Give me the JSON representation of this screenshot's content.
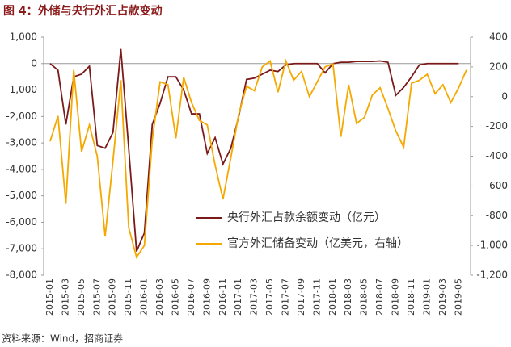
{
  "chart_data": {
    "type": "line",
    "title": "图 4：外储与央行外汇占款变动",
    "source": "资料来源：Wind，招商证券",
    "categories": [
      "2015-01",
      null,
      "2015-03",
      null,
      "2015-05",
      null,
      "2015-07",
      null,
      "2015-09",
      null,
      "2015-11",
      null,
      "2016-01",
      null,
      "2016-03",
      null,
      "2016-05",
      null,
      "2016-07",
      null,
      "2016-09",
      null,
      "2016-11",
      null,
      "2017-01",
      null,
      "2017-03",
      null,
      "2017-05",
      null,
      "2017-07",
      null,
      "2017-09",
      null,
      "2017-11",
      null,
      "2018-01",
      null,
      "2018-03",
      null,
      "2018-05",
      null,
      "2018-07",
      null,
      "2018-09",
      null,
      "2018-11",
      null,
      "2019-01",
      null,
      "2019-03",
      null,
      "2019-05",
      null
    ],
    "series": [
      {
        "name": "央行外汇占款余额变动（亿元）",
        "color": "#7b1a1a",
        "values": [
          0,
          -250,
          -2300,
          -500,
          -400,
          -100,
          -3100,
          -3200,
          -2600,
          550,
          -3200,
          -7100,
          -6400,
          -2300,
          -1500,
          -500,
          -500,
          -1000,
          -1900,
          -1900,
          -3400,
          -2800,
          -3800,
          -3200,
          -2000,
          -600,
          -550,
          -400,
          -250,
          -300,
          -50,
          0,
          0,
          0,
          0,
          -350,
          0,
          50,
          50,
          80,
          80,
          80,
          100,
          50,
          -1200,
          -900,
          -500,
          -50,
          0,
          0,
          0,
          0,
          0,
          null
        ]
      },
      {
        "name": "官方外汇储备变动（亿美元，右轴）",
        "color": "#f5a800",
        "axis": "y2",
        "values": [
          -300,
          -130,
          -720,
          180,
          -370,
          -190,
          -400,
          -940,
          -430,
          110,
          -880,
          -1080,
          -1000,
          -290,
          100,
          80,
          -280,
          130,
          -40,
          -160,
          -190,
          -460,
          -690,
          -410,
          -120,
          70,
          40,
          200,
          240,
          30,
          240,
          110,
          170,
          0,
          100,
          200,
          220,
          -270,
          80,
          -180,
          -140,
          10,
          60,
          -80,
          -230,
          -340,
          90,
          110,
          150,
          20,
          80,
          -40,
          60,
          180
        ]
      }
    ],
    "ylim": [
      -8000,
      1000
    ],
    "yticks": [
      {
        "value": 1000,
        "label": "1,000"
      },
      0,
      {
        "value": -1000,
        "label": "-1,000"
      },
      {
        "value": -2000,
        "label": "-2,000"
      },
      {
        "value": -3000,
        "label": "-3,000"
      },
      {
        "value": -4000,
        "label": "-4,000"
      },
      {
        "value": -5000,
        "label": "-5,000"
      },
      {
        "value": -6000,
        "label": "-6,000"
      },
      {
        "value": -7000,
        "label": "-7,000"
      },
      {
        "value": -8000,
        "label": "-8,000"
      }
    ],
    "y2lim": [
      -1200,
      400
    ],
    "y2ticks": [
      400,
      200,
      0,
      -200,
      -400,
      -600,
      -800,
      {
        "value": -1000,
        "label": "-1,000"
      },
      {
        "value": -1200,
        "label": "-1,200"
      }
    ]
  }
}
